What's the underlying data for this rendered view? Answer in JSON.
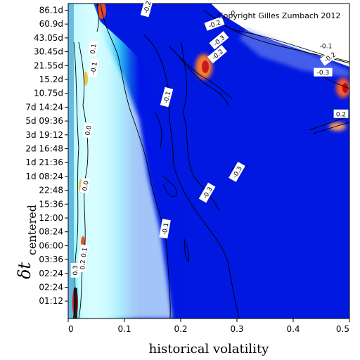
{
  "chart_data": {
    "type": "heatmap",
    "copyright": "Copyright Gilles Zumbach 2012",
    "xlabel": "historical volatility",
    "ylabel_main": "δt",
    "ylabel_sub": "centered",
    "xlim": [
      0,
      0.5
    ],
    "x_ticks": [
      "0",
      "0.1",
      "0.2",
      "0.3",
      "0.4",
      "0.5"
    ],
    "y_ticks": [
      "01:12",
      "02:24",
      "02:24",
      "03:36",
      "06:00",
      "08:24",
      "12:00",
      "15:36",
      "22:48",
      "1d 08:24",
      "1d 21:36",
      "2d 16:48",
      "3d 19:12",
      "5d 09:36",
      "7d 14:24",
      "10.75d",
      "15.2d",
      "21.55d",
      "30.45d",
      "43.05d",
      "60.9d",
      "86.1d"
    ],
    "contour_labels": [
      {
        "text": "-0.1",
        "x": 0.175,
        "y": 14.7,
        "rot": -75
      },
      {
        "text": "-0.1",
        "x": 0.172,
        "y": 5.2,
        "rot": -80
      },
      {
        "text": "0",
        "x": 0.293,
        "y": 20.8,
        "rot": 0
      },
      {
        "text": "-0.2",
        "x": 0.26,
        "y": 20.0,
        "rot": -20
      },
      {
        "text": "-0.3",
        "x": 0.268,
        "y": 18.8,
        "rot": -40
      },
      {
        "text": "-0.2",
        "x": 0.265,
        "y": 17.8,
        "rot": -40
      },
      {
        "text": "-0.3",
        "x": 0.3,
        "y": 9.3,
        "rot": -60
      },
      {
        "text": "-0.3",
        "x": 0.247,
        "y": 7.8,
        "rot": -60
      },
      {
        "text": "-0.1",
        "x": 0.458,
        "y": 18.4,
        "rot": 0
      },
      {
        "text": "-0.2",
        "x": 0.465,
        "y": 17.6,
        "rot": -35
      },
      {
        "text": "-0.3",
        "x": 0.453,
        "y": 16.5,
        "rot": 0
      },
      {
        "text": "0.2",
        "x": 0.485,
        "y": 13.5,
        "rot": 0
      },
      {
        "text": "-0.2",
        "x": 0.14,
        "y": 21.2,
        "rot": -75
      },
      {
        "text": "0.1",
        "x": 0.044,
        "y": 18.2,
        "rot": -80
      },
      {
        "text": "-0.1",
        "x": 0.045,
        "y": 16.8,
        "rot": -80
      },
      {
        "text": "0.0",
        "x": 0.035,
        "y": 12.3,
        "rot": -80
      },
      {
        "text": "0.0",
        "x": 0.03,
        "y": 8.3,
        "rot": -80
      },
      {
        "text": "0.1",
        "x": 0.028,
        "y": 3.5,
        "rot": -80
      },
      {
        "text": "0.3",
        "x": 0.012,
        "y": 2.2,
        "rot": -90
      },
      {
        "text": "0.2",
        "x": 0.025,
        "y": 2.6,
        "rot": -90
      }
    ]
  }
}
